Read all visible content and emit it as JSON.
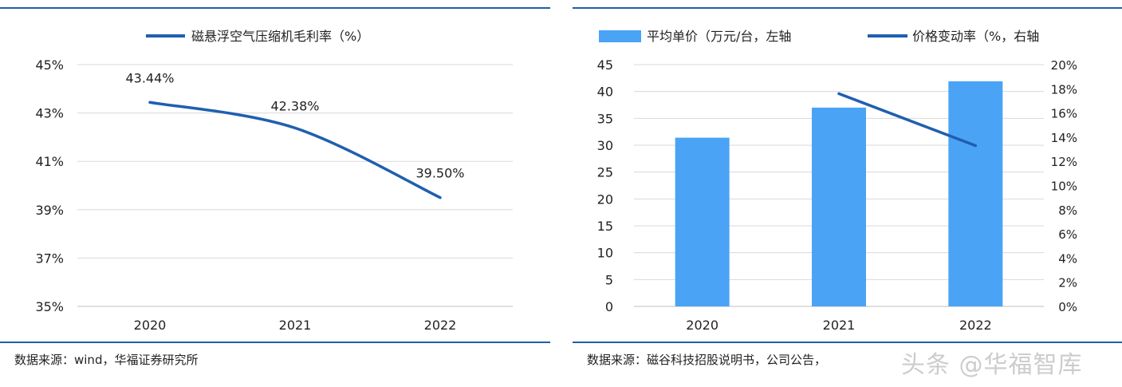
{
  "chart_data": [
    {
      "type": "line",
      "title": "",
      "legend": [
        "磁悬浮空气压缩机毛利率（%）"
      ],
      "legend_position": "top-center",
      "categories": [
        "2020",
        "2021",
        "2022"
      ],
      "series": [
        {
          "name": "磁悬浮空气压缩机毛利率（%）",
          "values": [
            43.44,
            42.38,
            39.5
          ],
          "color": "#1f5fb0"
        }
      ],
      "data_labels": [
        "43.44%",
        "42.38%",
        "39.50%"
      ],
      "y_ticks": [
        "35%",
        "37%",
        "39%",
        "41%",
        "43%",
        "45%"
      ],
      "ylim": [
        35,
        45
      ],
      "grid": "horizontal",
      "source": "数据来源：wind，华福证券研究所"
    },
    {
      "type": "bar",
      "title": "",
      "legend": [
        "平均单价（万元/台，左轴",
        "价格变动率（%，右轴"
      ],
      "legend_position": "top-center",
      "categories": [
        "2020",
        "2021",
        "2022"
      ],
      "series": [
        {
          "name": "平均单价（万元/台，左轴",
          "type": "bar",
          "axis": "left",
          "values": [
            31.4,
            37.0,
            41.9
          ],
          "color": "#4aa3f5"
        },
        {
          "name": "价格变动率（%，右轴",
          "type": "line",
          "axis": "right",
          "values": [
            null,
            17.6,
            13.3
          ],
          "color": "#1f5fb0"
        }
      ],
      "y_left_ticks": [
        "0",
        "5",
        "10",
        "15",
        "20",
        "25",
        "30",
        "35",
        "40",
        "45"
      ],
      "y_right_ticks": [
        "0%",
        "2%",
        "4%",
        "6%",
        "8%",
        "10%",
        "12%",
        "14%",
        "16%",
        "18%",
        "20%"
      ],
      "ylim_left": [
        0,
        45
      ],
      "ylim_right": [
        0,
        20
      ],
      "grid": "horizontal",
      "source": "数据来源：磁谷科技招股说明书，公司公告，"
    }
  ],
  "watermark": "头条 @华福智库"
}
